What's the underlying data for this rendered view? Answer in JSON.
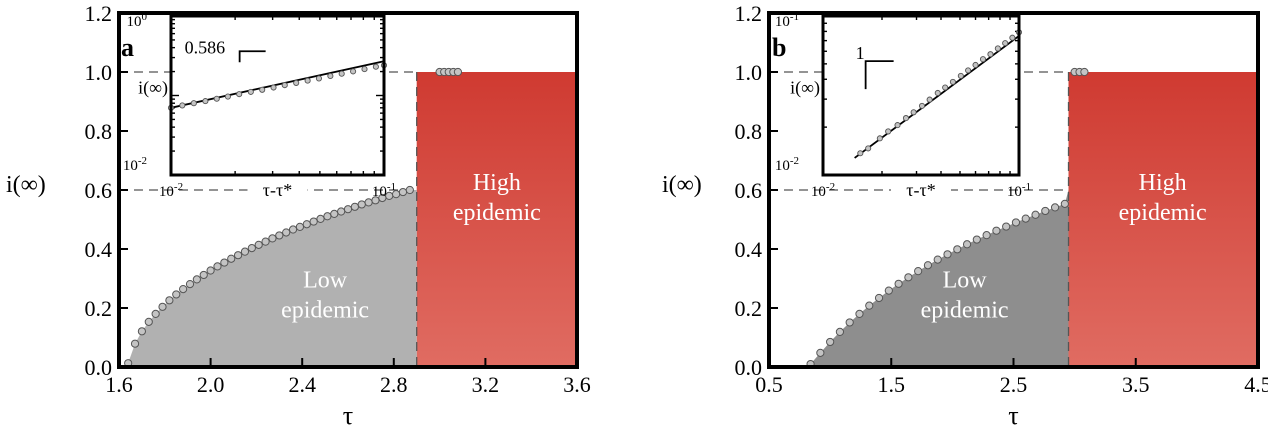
{
  "colors": {
    "high_region": "#d7463c",
    "high_region_bottom": "#de6a60",
    "low_region_a": "#b1b1b1",
    "low_region_b": "#8e8e8e",
    "marker_fill": "#c4c4c4",
    "marker_stroke": "#555555",
    "dashed": "#555555"
  },
  "chart_data": [
    {
      "type": "scatter",
      "panel_label": "a",
      "xlabel": "τ",
      "ylabel": "i(∞)",
      "xlim": [
        1.6,
        3.6
      ],
      "ylim": [
        0,
        1.2
      ],
      "xticks": [
        "1.6",
        "2.0",
        "2.4",
        "2.8",
        "3.2",
        "3.6"
      ],
      "yticks": [
        "0.0",
        "0.2",
        "0.4",
        "0.6",
        "0.8",
        "1.0",
        "1.2"
      ],
      "grid": false,
      "critical_tau": 1.64,
      "transition_tau": 2.9,
      "low_plateau": 0.6,
      "high_plateau": 1.0,
      "regions": [
        {
          "label_lines": [
            "Low",
            "epidemic"
          ],
          "label_x": 2.5,
          "label_y": 0.27
        },
        {
          "label_lines": [
            "High",
            "epidemic"
          ],
          "label_x": 3.25,
          "label_y": 0.6
        }
      ],
      "series": [
        {
          "x": [
            1.64,
            1.67,
            1.7,
            1.73,
            1.76,
            1.79,
            1.82,
            1.85,
            1.88,
            1.91,
            1.94,
            1.97,
            2.0,
            2.03,
            2.06,
            2.09,
            2.12,
            2.15,
            2.18,
            2.21,
            2.24,
            2.27,
            2.3,
            2.33,
            2.36,
            2.39,
            2.42,
            2.45,
            2.48,
            2.51,
            2.54,
            2.57,
            2.6,
            2.63,
            2.66,
            2.69,
            2.72,
            2.75,
            2.78,
            2.81,
            2.84,
            2.87,
            3.0,
            3.02,
            3.04,
            3.06,
            3.08
          ],
          "y": [
            0.013,
            0.079,
            0.121,
            0.153,
            0.18,
            0.204,
            0.226,
            0.246,
            0.264,
            0.281,
            0.297,
            0.312,
            0.327,
            0.341,
            0.354,
            0.367,
            0.379,
            0.391,
            0.403,
            0.414,
            0.425,
            0.436,
            0.446,
            0.456,
            0.466,
            0.475,
            0.484,
            0.493,
            0.502,
            0.511,
            0.519,
            0.527,
            0.535,
            0.543,
            0.551,
            0.558,
            0.565,
            0.573,
            0.58,
            0.586,
            0.593,
            0.6,
            1.0,
            1.0,
            1.0,
            1.0,
            1.0
          ]
        }
      ],
      "inset": {
        "xlabel": "τ-τ*",
        "ylabel": "i(∞)",
        "xlog": true,
        "ylog": true,
        "xlim": [
          0.01,
          0.1
        ],
        "ylim": [
          0.01,
          1
        ],
        "xtick_labels": [
          {
            "base": "10",
            "exp": "-2"
          },
          {
            "base": "10",
            "exp": "-1"
          }
        ],
        "ytick_labels": [
          {
            "base": "10",
            "exp": "0"
          },
          {
            "base": "10",
            "exp": "-2"
          }
        ],
        "slope_label": "0.586",
        "fit": {
          "x": [
            0.01,
            0.1
          ],
          "y": [
            0.07,
            0.27
          ]
        },
        "points": {
          "x": [
            0.01,
            0.0113,
            0.0128,
            0.0145,
            0.0164,
            0.0185,
            0.0209,
            0.0237,
            0.0268,
            0.0303,
            0.0342,
            0.0387,
            0.0438,
            0.0495,
            0.056,
            0.0633,
            0.0716,
            0.081,
            0.0916,
            0.1
          ],
          "y": [
            0.07,
            0.075,
            0.08,
            0.085,
            0.091,
            0.097,
            0.104,
            0.111,
            0.118,
            0.126,
            0.135,
            0.144,
            0.154,
            0.164,
            0.176,
            0.188,
            0.201,
            0.215,
            0.23,
            0.24
          ]
        }
      }
    },
    {
      "type": "scatter",
      "panel_label": "b",
      "xlabel": "τ",
      "ylabel": "i(∞)",
      "xlim": [
        0.5,
        4.5
      ],
      "ylim": [
        0,
        1.2
      ],
      "xticks": [
        "0.5",
        "1.5",
        "2.5",
        "3.5",
        "4.5"
      ],
      "yticks": [
        "0.0",
        "0.2",
        "0.4",
        "0.6",
        "0.8",
        "1.0",
        "1.2"
      ],
      "grid": false,
      "critical_tau": 0.84,
      "transition_tau": 2.95,
      "low_plateau": 0.6,
      "high_plateau": 1.0,
      "regions": [
        {
          "label_lines": [
            "Low",
            "epidemic"
          ],
          "label_x": 2.1,
          "label_y": 0.27
        },
        {
          "label_lines": [
            "High",
            "epidemic"
          ],
          "label_x": 3.72,
          "label_y": 0.6
        }
      ],
      "series": [
        {
          "x": [
            0.84,
            0.92,
            1.0,
            1.08,
            1.16,
            1.24,
            1.32,
            1.4,
            1.48,
            1.56,
            1.64,
            1.72,
            1.8,
            1.88,
            1.96,
            2.04,
            2.12,
            2.2,
            2.28,
            2.36,
            2.44,
            2.52,
            2.6,
            2.68,
            2.76,
            2.84,
            2.92,
            3.0,
            3.04,
            3.08
          ],
          "y": [
            0.01,
            0.048,
            0.085,
            0.119,
            0.151,
            0.18,
            0.208,
            0.234,
            0.259,
            0.282,
            0.304,
            0.325,
            0.345,
            0.364,
            0.382,
            0.399,
            0.416,
            0.432,
            0.447,
            0.462,
            0.476,
            0.49,
            0.503,
            0.516,
            0.529,
            0.541,
            0.553,
            1.0,
            1.0,
            1.0
          ]
        }
      ],
      "inset": {
        "xlabel": "τ-τ*",
        "ylabel": "i(∞)",
        "xlog": true,
        "ylog": true,
        "xlim": [
          0.01,
          0.1
        ],
        "ylim": [
          0.01,
          0.1
        ],
        "xtick_labels": [
          {
            "base": "10",
            "exp": "-2"
          },
          {
            "base": "10",
            "exp": "-1"
          }
        ],
        "ytick_labels": [
          {
            "base": "10",
            "exp": "-1"
          },
          {
            "base": "10",
            "exp": "-2"
          }
        ],
        "slope_label": "1",
        "fit": {
          "x": [
            0.0145,
            0.1
          ],
          "y": [
            0.0128,
            0.075
          ]
        },
        "points": {
          "x": [
            0.0155,
            0.017,
            0.0195,
            0.0215,
            0.024,
            0.0265,
            0.029,
            0.032,
            0.035,
            0.0385,
            0.042,
            0.046,
            0.0505,
            0.055,
            0.06,
            0.0655,
            0.0715,
            0.078,
            0.085,
            0.0925,
            0.1
          ],
          "y": [
            0.0137,
            0.0147,
            0.017,
            0.0188,
            0.0206,
            0.0228,
            0.0248,
            0.0272,
            0.0298,
            0.0328,
            0.0355,
            0.0385,
            0.042,
            0.0455,
            0.0492,
            0.0535,
            0.0575,
            0.0625,
            0.0675,
            0.073,
            0.079
          ]
        }
      }
    }
  ]
}
